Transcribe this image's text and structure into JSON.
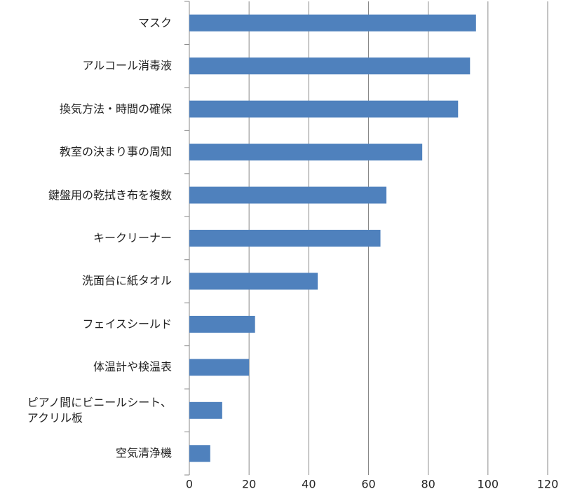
{
  "chart_data": {
    "type": "barh",
    "categories": [
      "マスク",
      "アルコール消毒液",
      "換気方法・時間の確保",
      "教室の決まり事の周知",
      "鍵盤用の乾拭き布を複数",
      "キークリーナー",
      "洗面台に紙タオル",
      "フェイスシールド",
      "体温計や検温表",
      "ピアノ間にビニールシート、\nアクリル板",
      "空気清浄機"
    ],
    "values": [
      96,
      94,
      90,
      78,
      66,
      64,
      43,
      22,
      20,
      11,
      7
    ],
    "color": "#4f81bd",
    "xlim": [
      0,
      120
    ],
    "xticks": [
      0,
      20,
      40,
      60,
      80,
      100,
      120
    ],
    "grid": true
  }
}
